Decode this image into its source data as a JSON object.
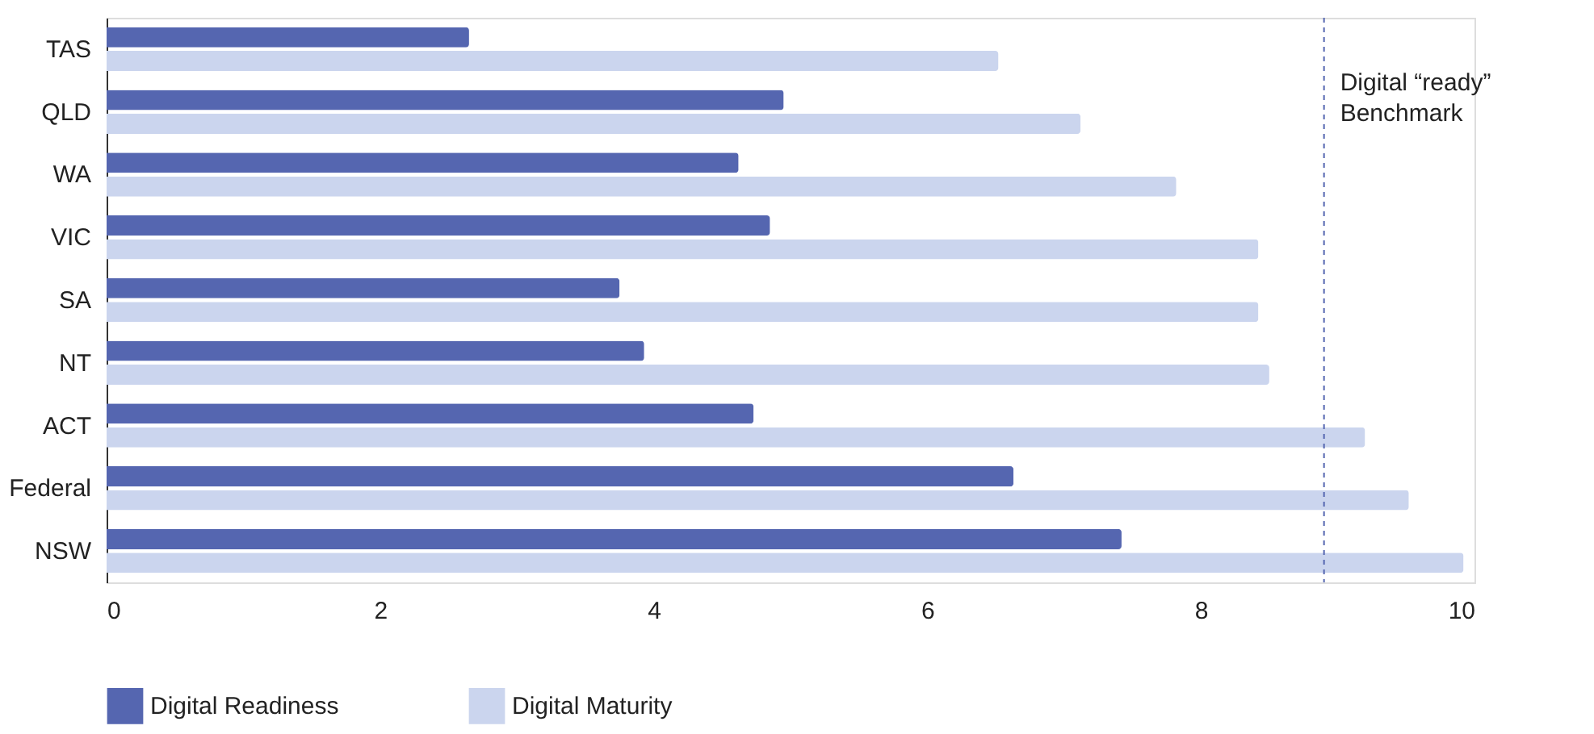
{
  "chart_data": {
    "type": "bar",
    "orientation": "horizontal",
    "categories": [
      "TAS",
      "QLD",
      "WA",
      "VIC",
      "SA",
      "NT",
      "ACT",
      "Federal",
      "NSW"
    ],
    "series": [
      {
        "name": "Digital Readiness",
        "color": "#5566b0",
        "values": [
          2.65,
          4.95,
          4.62,
          4.85,
          3.75,
          3.93,
          4.73,
          6.63,
          7.42
        ]
      },
      {
        "name": "Digital Maturity",
        "color": "#cbd5ee",
        "values": [
          6.52,
          7.12,
          7.82,
          8.42,
          8.42,
          8.5,
          9.2,
          9.52,
          9.92
        ]
      }
    ],
    "xlim": [
      0,
      10
    ],
    "xticks": [
      0,
      2,
      4,
      6,
      8,
      10
    ],
    "ref_lines": [
      {
        "axis": "x",
        "value": 8.9,
        "label": "Digital “ready”\nBenchmark",
        "color": "#5566b0",
        "line_style": "dashed"
      }
    ],
    "grid": false,
    "legend": "bottom"
  }
}
